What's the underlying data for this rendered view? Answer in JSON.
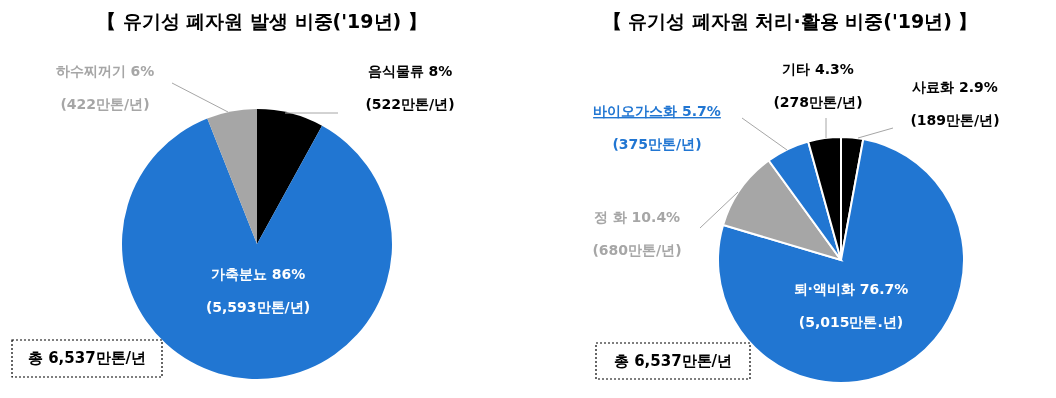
{
  "chart_data": [
    {
      "type": "pie",
      "title": "【 유기성 폐자원 발생 비중('19년) 】",
      "categories": [
        "음식물류",
        "가축분뇨",
        "하수찌꺼기"
      ],
      "values": [
        8,
        86,
        6
      ],
      "colors": [
        "#000000",
        "#2176d2",
        "#a6a6a6"
      ],
      "value_labels": [
        "8%\n(522만톤/년)",
        "86%\n(5,593만톤/년)",
        "6%\n(422만톤/년)"
      ],
      "annotations": [
        "총 6,537만톤/년"
      ]
    },
    {
      "type": "pie",
      "title": "【 유기성 폐자원 처리·활용 비중('19년) 】",
      "categories": [
        "사료화",
        "퇴·액비화",
        "정 화",
        "바이오가스화",
        "기타"
      ],
      "values": [
        2.9,
        76.7,
        10.4,
        5.7,
        4.3
      ],
      "colors": [
        "#000000",
        "#2176d2",
        "#a6a6a6",
        "#2176d2",
        "#000000"
      ],
      "value_labels": [
        "2.9%\n(189만톤/년)",
        "76.7%\n(5,015만톤.년)",
        "10.4%\n(680만톤/년)",
        "5.7%\n(375만톤/년)",
        "4.3%\n(278만톤/년)"
      ],
      "annotations": [
        "총 6,537만톤/년"
      ]
    }
  ]
}
